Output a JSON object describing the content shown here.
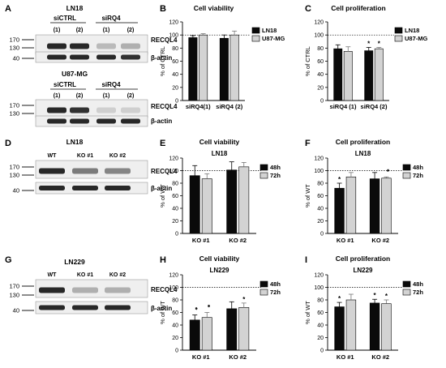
{
  "colors": {
    "black_bar": "#0a0a0a",
    "grey_bar": "#d3d3d3",
    "blot_bg": "#efefef",
    "band": "#1c1c1c"
  },
  "blots": [
    {
      "id": "A1",
      "panel_label": "A",
      "title": "LN18",
      "subheader_left": "siCTRL",
      "subheader_right": "siRQ4",
      "lanes": [
        "(1)",
        "(2)",
        "(1)",
        "(2)"
      ],
      "markers": [
        {
          "mw": "170"
        },
        {
          "mw": "130"
        },
        {
          "mw": "40"
        }
      ],
      "proteins": [
        {
          "name": "RECQL4",
          "intensity": [
            0.95,
            0.95,
            0.25,
            0.3
          ]
        },
        {
          "name": "β-actin",
          "intensity": [
            0.95,
            0.95,
            0.95,
            0.9
          ]
        }
      ]
    },
    {
      "id": "A2",
      "panel_label": "",
      "title": "U87-MG",
      "subheader_left": "siCTRL",
      "subheader_right": "siRQ4",
      "lanes": [
        "(1)",
        "(2)",
        "(1)",
        "(2)"
      ],
      "markers": [
        {
          "mw": "170"
        },
        {
          "mw": "130"
        }
      ],
      "proteins": [
        {
          "name": "RECQL4",
          "intensity": [
            0.95,
            0.9,
            0.15,
            0.15
          ]
        },
        {
          "name": "β-actin",
          "intensity": [
            0.95,
            0.95,
            0.95,
            0.95
          ]
        }
      ]
    },
    {
      "id": "D",
      "panel_label": "D",
      "title": "LN18",
      "subheader_left": "",
      "subheader_right": "",
      "lanes": [
        "WT",
        "KO #1",
        "KO #2"
      ],
      "markers": [
        {
          "mw": "170"
        },
        {
          "mw": "130"
        },
        {
          "mw": "40"
        }
      ],
      "proteins": [
        {
          "name": "RECQL4",
          "intensity": [
            0.95,
            0.55,
            0.5
          ]
        },
        {
          "name": "β-actin",
          "intensity": [
            0.95,
            0.95,
            0.95
          ]
        }
      ]
    },
    {
      "id": "G",
      "panel_label": "G",
      "title": "LN229",
      "subheader_left": "",
      "subheader_right": "",
      "lanes": [
        "WT",
        "KO #1",
        "KO #2"
      ],
      "markers": [
        {
          "mw": "170"
        },
        {
          "mw": "130"
        },
        {
          "mw": "40"
        }
      ],
      "proteins": [
        {
          "name": "RECQL4",
          "intensity": [
            0.95,
            0.3,
            0.3
          ]
        },
        {
          "name": "β-actin",
          "intensity": [
            0.95,
            0.95,
            0.95
          ]
        }
      ]
    }
  ],
  "chart_data": [
    {
      "id": "B",
      "panel_label": "B",
      "type": "bar",
      "title": "Cell viability",
      "subtitle": "",
      "ylabel": "% of CTRL",
      "ylim": [
        0,
        120
      ],
      "yticks": [
        0,
        20,
        40,
        60,
        80,
        100,
        120
      ],
      "reference_line": 100,
      "categories": [
        "siRQ4(1)",
        "siRQ4 (2)"
      ],
      "series": [
        {
          "name": "LN18",
          "color": "#0a0a0a",
          "values": [
            96,
            95
          ],
          "errors": [
            3,
            5
          ],
          "significance": [
            "",
            ""
          ]
        },
        {
          "name": "U87-MG",
          "color": "#d3d3d3",
          "values": [
            100,
            100
          ],
          "errors": [
            2,
            6
          ],
          "significance": [
            "",
            ""
          ]
        }
      ]
    },
    {
      "id": "C",
      "panel_label": "C",
      "type": "bar",
      "title": "Cell proliferation",
      "subtitle": "",
      "ylabel": "% of CTRL",
      "ylim": [
        0,
        120
      ],
      "yticks": [
        0,
        20,
        40,
        60,
        80,
        100,
        120
      ],
      "reference_line": 100,
      "categories": [
        "siRQ4 (1)",
        "siRQ4 (2)"
      ],
      "series": [
        {
          "name": "LN18",
          "color": "#0a0a0a",
          "values": [
            79,
            76
          ],
          "errors": [
            6,
            5
          ],
          "significance": [
            "",
            "*"
          ]
        },
        {
          "name": "U87-MG",
          "color": "#d3d3d3",
          "values": [
            75,
            79
          ],
          "errors": [
            7,
            2
          ],
          "significance": [
            "",
            "*"
          ]
        }
      ]
    },
    {
      "id": "E",
      "panel_label": "E",
      "type": "bar",
      "title": "Cell viability",
      "subtitle": "LN18",
      "ylabel": "% of WT",
      "ylim": [
        0,
        120
      ],
      "yticks": [
        0,
        20,
        40,
        60,
        80,
        100,
        120
      ],
      "reference_line": 100,
      "categories": [
        "KO #1",
        "KO #2"
      ],
      "series": [
        {
          "name": "48h",
          "color": "#0a0a0a",
          "values": [
            92,
            101
          ],
          "errors": [
            16,
            13
          ],
          "significance": [
            "",
            ""
          ]
        },
        {
          "name": "72h",
          "color": "#d3d3d3",
          "values": [
            87,
            106
          ],
          "errors": [
            8,
            7
          ],
          "significance": [
            "",
            ""
          ]
        }
      ]
    },
    {
      "id": "F",
      "panel_label": "F",
      "type": "bar",
      "title": "Cell proliferation",
      "subtitle": "LN18",
      "ylabel": "% of WT",
      "ylim": [
        0,
        120
      ],
      "yticks": [
        0,
        20,
        40,
        60,
        80,
        100,
        120
      ],
      "reference_line": 100,
      "categories": [
        "KO #1",
        "KO #2"
      ],
      "series": [
        {
          "name": "48h",
          "color": "#0a0a0a",
          "values": [
            72,
            87
          ],
          "errors": [
            8,
            10
          ],
          "significance": [
            "*",
            ""
          ]
        },
        {
          "name": "72h",
          "color": "#d3d3d3",
          "values": [
            90,
            88
          ],
          "errors": [
            7,
            2
          ],
          "significance": [
            "",
            "**"
          ]
        }
      ]
    },
    {
      "id": "H",
      "panel_label": "H",
      "type": "bar",
      "title": "Cell viability",
      "subtitle": "LN229",
      "ylabel": "% of WT",
      "ylim": [
        0,
        120
      ],
      "yticks": [
        0,
        20,
        40,
        60,
        80,
        100,
        120
      ],
      "reference_line": 100,
      "categories": [
        "KO #1",
        "KO #2"
      ],
      "series": [
        {
          "name": "48h",
          "color": "#0a0a0a",
          "values": [
            48,
            66
          ],
          "errors": [
            8,
            11
          ],
          "significance": [
            "**",
            ""
          ]
        },
        {
          "name": "72h",
          "color": "#d3d3d3",
          "values": [
            52,
            68
          ],
          "errors": [
            8,
            7
          ],
          "significance": [
            "**",
            "*"
          ]
        }
      ]
    },
    {
      "id": "I",
      "panel_label": "I",
      "type": "bar",
      "title": "Cell proliferation",
      "subtitle": "LN229",
      "ylabel": "% of WT",
      "ylim": [
        0,
        120
      ],
      "yticks": [
        0,
        20,
        40,
        60,
        80,
        100,
        120
      ],
      "reference_line": 100,
      "categories": [
        "KO #1",
        "KO #2"
      ],
      "series": [
        {
          "name": "48h",
          "color": "#0a0a0a",
          "values": [
            69,
            75
          ],
          "errors": [
            7,
            6
          ],
          "significance": [
            "*",
            "*"
          ]
        },
        {
          "name": "72h",
          "color": "#d3d3d3",
          "values": [
            80,
            74
          ],
          "errors": [
            9,
            6
          ],
          "significance": [
            "",
            "*"
          ]
        }
      ]
    }
  ]
}
